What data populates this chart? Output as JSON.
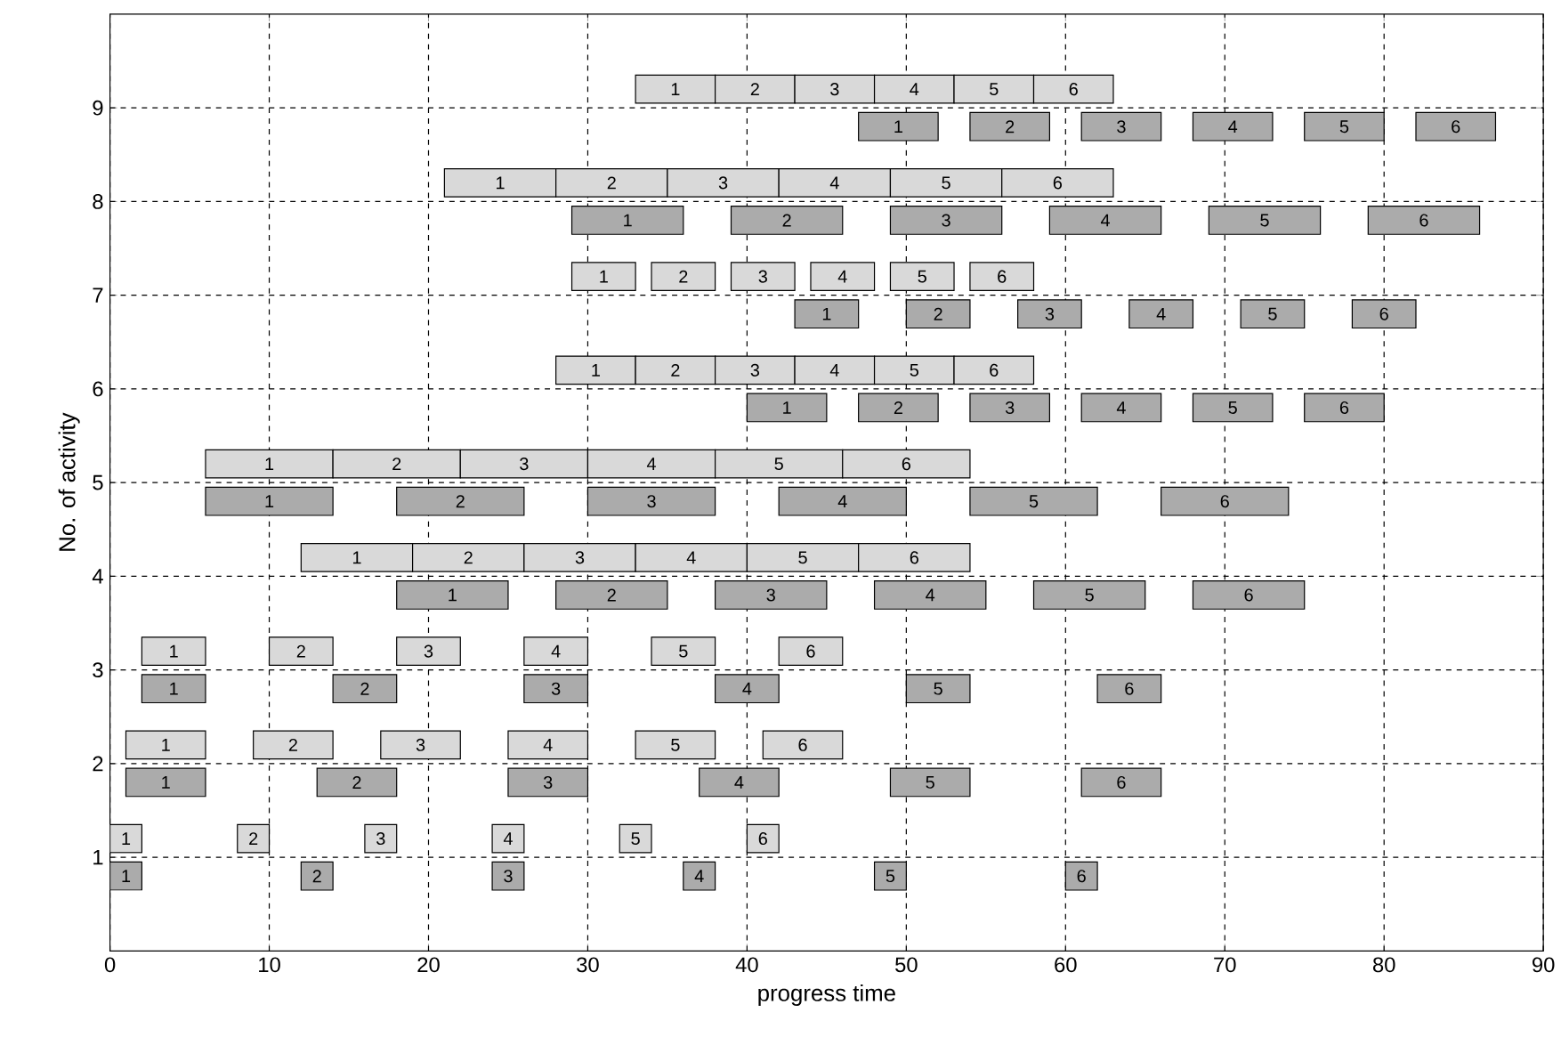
{
  "chart_data": {
    "type": "bar",
    "orientation": "horizontal",
    "xlabel": "progress time",
    "ylabel": "No. of activity",
    "categories": [
      "9",
      "8",
      "7",
      "6",
      "5",
      "4",
      "3",
      "2",
      "1"
    ],
    "xlim": [
      0,
      90
    ],
    "xticks": [
      0,
      10,
      20,
      30,
      40,
      50,
      60,
      70,
      80,
      90
    ],
    "grid": true,
    "series": [
      {
        "name": "1",
        "color": "#d9d9d9",
        "base": [
          33,
          21,
          29,
          28,
          6,
          12,
          2,
          1,
          0
        ],
        "values": [
          5,
          7,
          4,
          5,
          8,
          7,
          4,
          5,
          2
        ]
      },
      {
        "name": "2",
        "color": "#d9d9d9",
        "base": [
          38,
          28,
          34,
          33,
          14,
          19,
          10,
          9,
          8
        ],
        "values": [
          5,
          7,
          4,
          5,
          8,
          7,
          4,
          5,
          2
        ]
      },
      {
        "name": "3",
        "color": "#d9d9d9",
        "base": [
          43,
          35,
          39,
          38,
          22,
          26,
          18,
          17,
          16
        ],
        "values": [
          5,
          7,
          4,
          5,
          8,
          7,
          4,
          5,
          2
        ]
      },
      {
        "name": "4",
        "color": "#d9d9d9",
        "base": [
          48,
          42,
          44,
          43,
          30,
          33,
          26,
          25,
          24
        ],
        "values": [
          5,
          7,
          4,
          5,
          8,
          7,
          4,
          5,
          2
        ]
      },
      {
        "name": "5",
        "color": "#d9d9d9",
        "base": [
          53,
          49,
          49,
          48,
          38,
          40,
          34,
          33,
          32
        ],
        "values": [
          5,
          7,
          4,
          5,
          8,
          7,
          4,
          5,
          2
        ]
      },
      {
        "name": "6",
        "color": "#d9d9d9",
        "base": [
          58,
          56,
          54,
          53,
          46,
          47,
          42,
          41,
          40
        ],
        "values": [
          5,
          7,
          4,
          5,
          8,
          7,
          4,
          5,
          2
        ]
      },
      {
        "name": "1",
        "color": "#ababab",
        "base": [
          47,
          29,
          43,
          40,
          6,
          18,
          2,
          1,
          0
        ],
        "values": [
          5,
          7,
          4,
          5,
          8,
          7,
          4,
          5,
          2
        ]
      },
      {
        "name": "2",
        "color": "#ababab",
        "base": [
          54,
          39,
          50,
          47,
          18,
          28,
          14,
          13,
          12
        ],
        "values": [
          5,
          7,
          4,
          5,
          8,
          7,
          4,
          5,
          2
        ]
      },
      {
        "name": "3",
        "color": "#ababab",
        "base": [
          61,
          49,
          57,
          54,
          30,
          38,
          26,
          25,
          24
        ],
        "values": [
          5,
          7,
          4,
          5,
          8,
          7,
          4,
          5,
          2
        ]
      },
      {
        "name": "4",
        "color": "#ababab",
        "base": [
          68,
          59,
          64,
          61,
          42,
          48,
          38,
          37,
          36
        ],
        "values": [
          5,
          7,
          4,
          5,
          8,
          7,
          4,
          5,
          2
        ]
      },
      {
        "name": "5",
        "color": "#ababab",
        "base": [
          75,
          69,
          71,
          68,
          54,
          58,
          50,
          49,
          48
        ],
        "values": [
          5,
          7,
          4,
          5,
          8,
          7,
          4,
          5,
          2
        ]
      },
      {
        "name": "6",
        "color": "#ababab",
        "base": [
          82,
          79,
          78,
          75,
          66,
          68,
          62,
          61,
          60
        ],
        "values": [
          5,
          7,
          4,
          5,
          8,
          7,
          4,
          5,
          2
        ]
      }
    ]
  }
}
